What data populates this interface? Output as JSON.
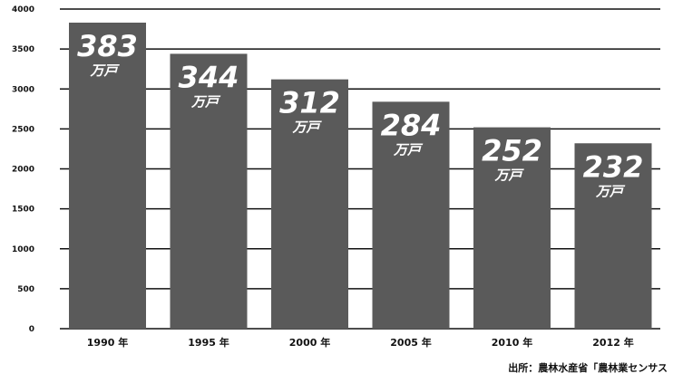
{
  "chart_data": {
    "type": "bar",
    "categories": [
      "1990 年",
      "1995 年",
      "2000 年",
      "2005 年",
      "2010 年",
      "2012 年"
    ],
    "values": [
      3830,
      3440,
      3120,
      2840,
      2520,
      2320
    ],
    "data_labels": [
      "383",
      "344",
      "312",
      "284",
      "252",
      "232"
    ],
    "data_label_unit": "万戸",
    "yticks": [
      0,
      500,
      1000,
      1500,
      2000,
      2500,
      3000,
      3500,
      4000
    ],
    "ylim": [
      0,
      4000
    ],
    "grid": true,
    "title": "",
    "xlabel": "",
    "ylabel": "",
    "source": "出所：農林水産省「農林業センサス"
  },
  "colors": {
    "bar": "#5a5a5a",
    "grid": "#111111",
    "label": "#ffffff"
  }
}
